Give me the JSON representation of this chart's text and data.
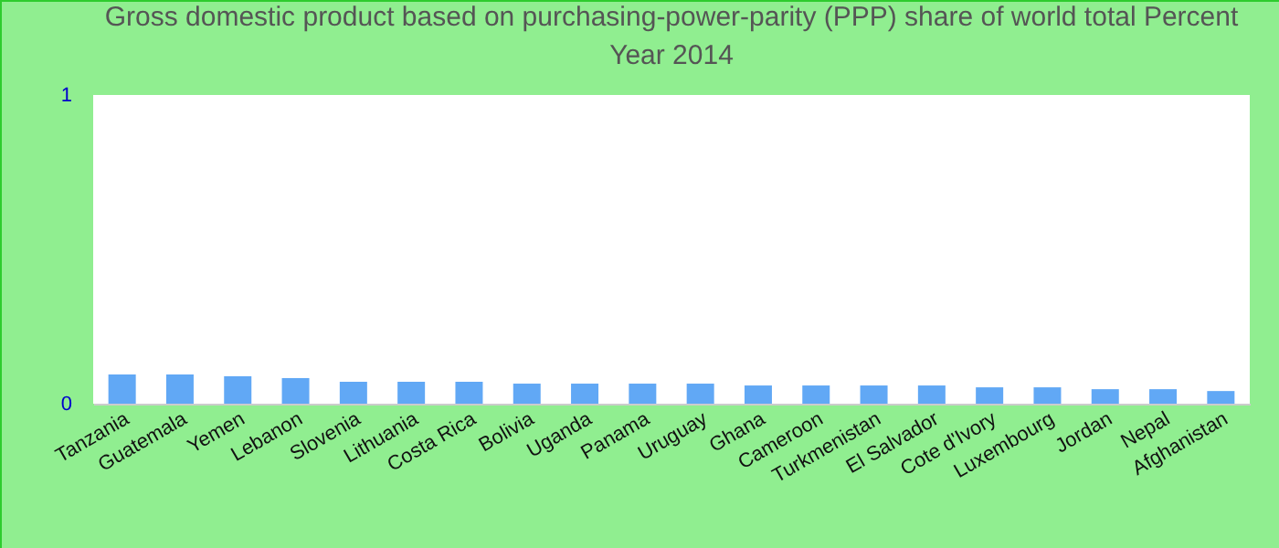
{
  "chart_data": {
    "type": "bar",
    "title": "Gross domestic product based on purchasing-power-parity (PPP) share of world total  Percent",
    "subtitle": "Year 2014",
    "categories": [
      "Tanzania",
      "Guatemala",
      "Yemen",
      "Lebanon",
      "Slovenia",
      "Lithuania",
      "Costa Rica",
      "Bolivia",
      "Uganda",
      "Panama",
      "Uruguay",
      "Ghana",
      "Cameroon",
      "Turkmenistan",
      "El Salvador",
      "Cote d'Ivory",
      "Luxembourg",
      "Jordan",
      "Nepal",
      "Afghanistan"
    ],
    "values": [
      0.095,
      0.095,
      0.089,
      0.083,
      0.071,
      0.071,
      0.071,
      0.065,
      0.065,
      0.065,
      0.065,
      0.059,
      0.059,
      0.059,
      0.059,
      0.053,
      0.053,
      0.047,
      0.047,
      0.041
    ],
    "color": "#61a8f5",
    "ylim": [
      0,
      1
    ],
    "yticks": [
      0,
      1
    ],
    "grid": false
  }
}
